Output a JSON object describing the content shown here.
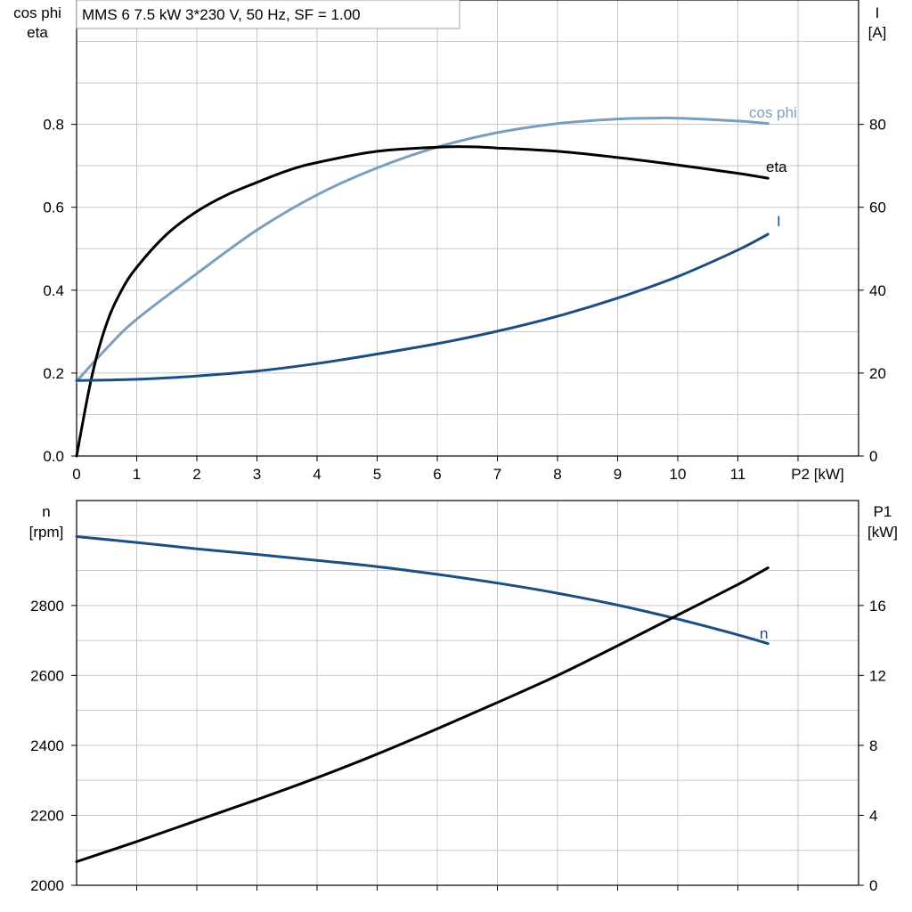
{
  "chart_data": [
    {
      "type": "line",
      "title": "MMS 6   7.5 kW   3*230 V, 50 Hz, SF = 1.00",
      "xlabel": "P2 [kW]",
      "xlim": [
        0,
        13
      ],
      "x_ticks": [
        0,
        1,
        2,
        3,
        4,
        5,
        6,
        7,
        8,
        9,
        10,
        11
      ],
      "y_left_label": [
        "cos phi",
        "eta"
      ],
      "y_left_lim": [
        0,
        1.1
      ],
      "y_left_ticks": [
        "0.0",
        "0.2",
        "0.4",
        "0.6",
        "0.8"
      ],
      "y_right_label": [
        "I",
        "[A]"
      ],
      "y_right_lim": [
        0,
        110
      ],
      "y_right_ticks": [
        "0",
        "20",
        "40",
        "60",
        "80"
      ],
      "grid": true,
      "series": [
        {
          "name": "cos phi",
          "axis": "left",
          "color": "#7a9fbe",
          "x": [
            0,
            0.5,
            1,
            2,
            3,
            4,
            5,
            6,
            7,
            8,
            9,
            9.6,
            10,
            11,
            11.5
          ],
          "y": [
            0.18,
            0.26,
            0.33,
            0.44,
            0.545,
            0.63,
            0.695,
            0.745,
            0.78,
            0.802,
            0.813,
            0.815,
            0.815,
            0.808,
            0.802
          ]
        },
        {
          "name": "eta",
          "axis": "left",
          "color": "#000000",
          "x": [
            0,
            0.25,
            0.5,
            0.75,
            1,
            1.5,
            2,
            2.5,
            3,
            3.5,
            4,
            5,
            6,
            6.5,
            7,
            8,
            9,
            10,
            11,
            11.5
          ],
          "y": [
            0,
            0.19,
            0.32,
            0.4,
            0.455,
            0.535,
            0.59,
            0.63,
            0.66,
            0.688,
            0.708,
            0.735,
            0.745,
            0.746,
            0.743,
            0.735,
            0.72,
            0.702,
            0.682,
            0.67
          ]
        },
        {
          "name": "I",
          "axis": "right",
          "color": "#1b4f82",
          "x": [
            0,
            1,
            2,
            3,
            4,
            5,
            6,
            7,
            8,
            9,
            10,
            11,
            11.5
          ],
          "y": [
            18.2,
            18.5,
            19.3,
            20.5,
            22.3,
            24.6,
            27.1,
            30.1,
            33.7,
            38.1,
            43.3,
            49.7,
            53.5
          ]
        }
      ]
    },
    {
      "type": "line",
      "xlim": [
        0,
        13
      ],
      "y_left_label": [
        "n",
        "[rpm]"
      ],
      "y_left_lim": [
        2000,
        3100
      ],
      "y_left_ticks": [
        "2000",
        "2200",
        "2400",
        "2600",
        "2800"
      ],
      "y_right_label": [
        "P1",
        "[kW]"
      ],
      "y_right_lim": [
        0,
        22
      ],
      "y_right_ticks": [
        "0",
        "4",
        "8",
        "12",
        "16"
      ],
      "grid": true,
      "series": [
        {
          "name": "n",
          "axis": "left",
          "color": "#1b4f82",
          "x": [
            0,
            1,
            2,
            3,
            4,
            5,
            6,
            7,
            8,
            9,
            10,
            11,
            11.5
          ],
          "y": [
            2997,
            2980,
            2962,
            2946,
            2929,
            2911,
            2889,
            2864,
            2835,
            2801,
            2761,
            2716,
            2691
          ]
        },
        {
          "name": "P1",
          "axis": "right",
          "color": "#000000",
          "x": [
            0,
            1,
            2,
            3,
            4,
            5,
            6,
            7,
            8,
            9,
            10,
            11,
            11.5
          ],
          "y": [
            1.35,
            2.5,
            3.7,
            4.9,
            6.15,
            7.5,
            8.95,
            10.45,
            12.0,
            13.7,
            15.45,
            17.2,
            18.15
          ]
        }
      ]
    }
  ],
  "labels": {
    "cos_phi": "cos phi",
    "eta": "eta",
    "I": "I",
    "n": "n"
  }
}
